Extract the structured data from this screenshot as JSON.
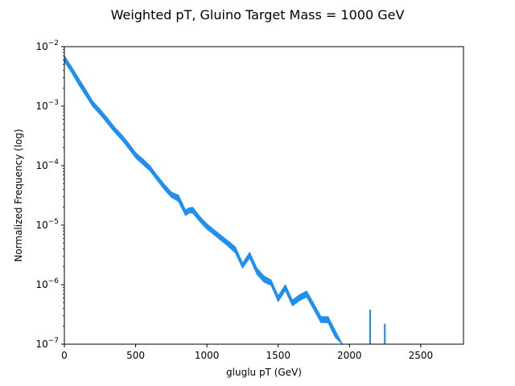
{
  "chart_data": {
    "type": "area",
    "title": "Weighted pT, Gluino Target Mass = 1000 GeV",
    "xlabel": "gluglu pT (GeV)",
    "ylabel": "Normalized Frequency (log)",
    "xlim": [
      0,
      2800
    ],
    "ylim": [
      1e-07,
      0.01
    ],
    "yscale": "log",
    "grid": false,
    "color": "#1f8ff0",
    "x_ticks": [
      0,
      500,
      1000,
      1500,
      2000,
      2500
    ],
    "x_tick_labels": [
      "0",
      "500",
      "1000",
      "1500",
      "2000",
      "2500"
    ],
    "y_ticks": [
      1e-07,
      1e-06,
      1e-05,
      0.0001,
      0.001,
      0.01
    ],
    "y_tick_labels": [
      {
        "base": "10",
        "exp": "−7"
      },
      {
        "base": "10",
        "exp": "−6"
      },
      {
        "base": "10",
        "exp": "−5"
      },
      {
        "base": "10",
        "exp": "−4"
      },
      {
        "base": "10",
        "exp": "−3"
      },
      {
        "base": "10",
        "exp": "−2"
      }
    ],
    "series": [
      {
        "x": [
          0,
          50,
          100,
          150,
          200,
          250,
          300,
          350,
          400,
          450,
          500,
          550,
          600,
          650,
          700,
          750,
          800,
          850,
          875,
          900,
          950,
          1000,
          1050,
          1100,
          1150,
          1200,
          1250,
          1300,
          1350,
          1400,
          1450,
          1500,
          1550,
          1600,
          1650,
          1700,
          1750,
          1800,
          1850,
          1900,
          1950,
          2000
        ],
        "upper": [
          0.007,
          0.0046,
          0.00295,
          0.0019,
          0.0012,
          0.00089,
          0.00064,
          0.00045,
          0.000335,
          0.00024,
          0.000165,
          0.00013,
          0.0001,
          6.9e-05,
          4.9e-05,
          3.6e-05,
          3.2e-05,
          1.8e-05,
          1.95e-05,
          2e-05,
          1.4e-05,
          1.05e-05,
          8.4e-06,
          6.7e-06,
          5.4e-06,
          4.3e-06,
          2.3e-06,
          3.5e-06,
          1.9e-06,
          1.4e-06,
          1.2e-06,
          6.5e-07,
          1e-06,
          5.5e-07,
          6.8e-07,
          7.8e-07,
          4.8e-07,
          2.9e-07,
          2.9e-07,
          1.7e-07,
          1e-07,
          6.5e-08
        ],
        "lower": [
          0.0056,
          0.0037,
          0.0023,
          0.0015,
          0.00098,
          0.00073,
          0.00052,
          0.00037,
          0.000275,
          0.000195,
          0.000135,
          0.000105,
          8.2e-05,
          5.7e-05,
          4e-05,
          2.95e-05,
          2.5e-05,
          1.45e-05,
          1.6e-05,
          1.6e-05,
          1.15e-05,
          8.6e-06,
          6.9e-06,
          5.5e-06,
          4.4e-06,
          3.4e-06,
          1.9e-06,
          2.8e-06,
          1.5e-06,
          1.1e-06,
          9.8e-07,
          5.2e-07,
          8e-07,
          4.4e-07,
          5.4e-07,
          6.2e-07,
          3.8e-07,
          2.3e-07,
          2.3e-07,
          1.3e-07,
          8e-08,
          5e-08
        ]
      }
    ],
    "spikes": [
      {
        "x": 2145,
        "top": 3.8e-07,
        "width": 12
      },
      {
        "x": 2248,
        "top": 2.2e-07,
        "width": 12
      }
    ]
  }
}
